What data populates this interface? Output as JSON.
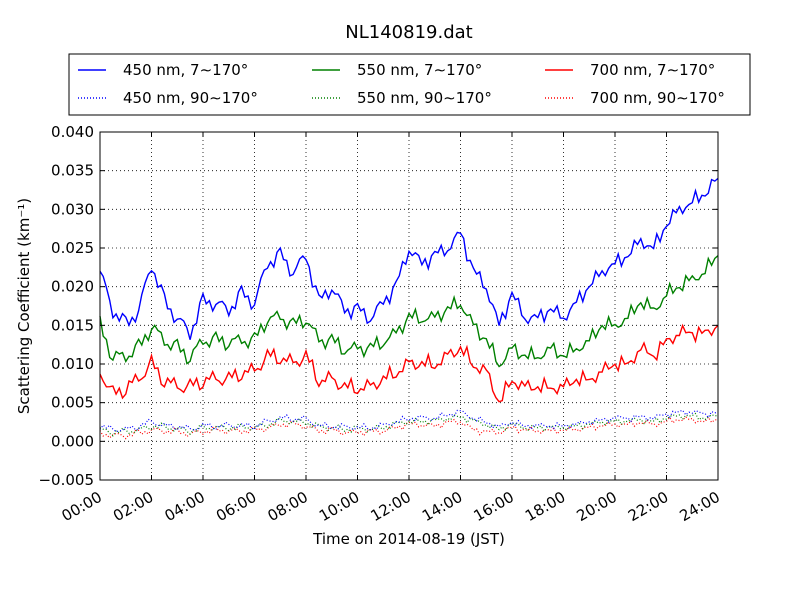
{
  "chart_data": {
    "type": "line",
    "title": "NL140819.dat",
    "xlabel": "Time on 2014-08-19 (JST)",
    "ylabel": "Scattering Coefficient (km⁻¹)",
    "ylim": [
      -0.005,
      0.04
    ],
    "xlim": [
      "00:00",
      "24:00"
    ],
    "grid": true,
    "legend_position": "top",
    "x_tick_labels": [
      "00:00",
      "02:00",
      "04:00",
      "06:00",
      "08:00",
      "10:00",
      "12:00",
      "14:00",
      "16:00",
      "18:00",
      "20:00",
      "22:00",
      "24:00"
    ],
    "y_tick_labels": [
      "−0.005",
      "0.000",
      "0.005",
      "0.010",
      "0.015",
      "0.020",
      "0.025",
      "0.030",
      "0.035",
      "0.040"
    ],
    "x_hours": [
      0,
      0.5,
      1,
      1.5,
      2,
      2.5,
      3,
      3.5,
      4,
      4.5,
      5,
      5.5,
      6,
      6.5,
      7,
      7.5,
      8,
      8.5,
      9,
      9.5,
      10,
      10.5,
      11,
      11.5,
      12,
      12.5,
      13,
      13.5,
      14,
      14.5,
      15,
      15.5,
      16,
      16.5,
      17,
      17.5,
      18,
      18.5,
      19,
      19.5,
      20,
      20.5,
      21,
      21.5,
      22,
      22.5,
      23,
      23.5,
      24
    ],
    "series": [
      {
        "name": "450 nm, 7∼170°",
        "color": "#0000ff",
        "style": "solid",
        "values": [
          0.022,
          0.017,
          0.015,
          0.017,
          0.023,
          0.018,
          0.016,
          0.014,
          0.018,
          0.018,
          0.017,
          0.019,
          0.018,
          0.023,
          0.024,
          0.022,
          0.024,
          0.018,
          0.02,
          0.017,
          0.017,
          0.016,
          0.018,
          0.02,
          0.025,
          0.023,
          0.024,
          0.025,
          0.027,
          0.022,
          0.02,
          0.015,
          0.019,
          0.016,
          0.016,
          0.017,
          0.016,
          0.018,
          0.02,
          0.022,
          0.023,
          0.024,
          0.026,
          0.025,
          0.028,
          0.03,
          0.031,
          0.032,
          0.034
        ]
      },
      {
        "name": "550 nm, 7∼170°",
        "color": "#008000",
        "style": "solid",
        "values": [
          0.015,
          0.011,
          0.011,
          0.012,
          0.015,
          0.013,
          0.012,
          0.011,
          0.013,
          0.013,
          0.013,
          0.013,
          0.013,
          0.016,
          0.016,
          0.015,
          0.016,
          0.013,
          0.013,
          0.012,
          0.012,
          0.012,
          0.013,
          0.014,
          0.016,
          0.016,
          0.016,
          0.017,
          0.018,
          0.015,
          0.013,
          0.01,
          0.012,
          0.011,
          0.011,
          0.012,
          0.011,
          0.012,
          0.013,
          0.015,
          0.015,
          0.016,
          0.018,
          0.017,
          0.019,
          0.02,
          0.021,
          0.022,
          0.024
        ]
      },
      {
        "name": "700 nm, 7∼170°",
        "color": "#ff0000",
        "style": "solid",
        "values": [
          0.009,
          0.006,
          0.007,
          0.008,
          0.01,
          0.008,
          0.007,
          0.007,
          0.008,
          0.008,
          0.008,
          0.009,
          0.009,
          0.011,
          0.011,
          0.01,
          0.011,
          0.008,
          0.008,
          0.007,
          0.007,
          0.007,
          0.008,
          0.009,
          0.01,
          0.01,
          0.01,
          0.011,
          0.012,
          0.01,
          0.009,
          0.005,
          0.008,
          0.007,
          0.007,
          0.007,
          0.007,
          0.008,
          0.008,
          0.009,
          0.01,
          0.01,
          0.012,
          0.011,
          0.013,
          0.014,
          0.014,
          0.014,
          0.015
        ]
      },
      {
        "name": "450 nm, 90∼170°",
        "color": "#0000ff",
        "style": "dotted",
        "values": [
          0.002,
          0.0015,
          0.0015,
          0.002,
          0.0025,
          0.002,
          0.002,
          0.0015,
          0.002,
          0.002,
          0.002,
          0.002,
          0.002,
          0.0025,
          0.003,
          0.003,
          0.0028,
          0.002,
          0.002,
          0.0018,
          0.0018,
          0.0018,
          0.002,
          0.0025,
          0.003,
          0.003,
          0.003,
          0.0035,
          0.0038,
          0.003,
          0.0025,
          0.0018,
          0.0025,
          0.002,
          0.002,
          0.002,
          0.002,
          0.0022,
          0.0025,
          0.0028,
          0.003,
          0.003,
          0.0032,
          0.003,
          0.0035,
          0.0038,
          0.0038,
          0.0035,
          0.0038
        ]
      },
      {
        "name": "550 nm, 90∼170°",
        "color": "#008000",
        "style": "dotted",
        "values": [
          0.0015,
          0.0012,
          0.0012,
          0.0015,
          0.002,
          0.0018,
          0.0016,
          0.0014,
          0.0017,
          0.0018,
          0.0018,
          0.0018,
          0.0018,
          0.0022,
          0.0026,
          0.0026,
          0.0025,
          0.0018,
          0.0018,
          0.0016,
          0.0016,
          0.0016,
          0.0018,
          0.0022,
          0.0026,
          0.0026,
          0.0026,
          0.003,
          0.0032,
          0.0026,
          0.0022,
          0.0016,
          0.0022,
          0.0018,
          0.0018,
          0.0018,
          0.0018,
          0.002,
          0.0022,
          0.0025,
          0.0026,
          0.0026,
          0.0028,
          0.0026,
          0.003,
          0.0033,
          0.0033,
          0.003,
          0.0033
        ]
      },
      {
        "name": "700 nm, 90∼170°",
        "color": "#ff0000",
        "style": "dotted",
        "values": [
          0.001,
          0.0008,
          0.0008,
          0.001,
          0.0015,
          0.0014,
          0.0012,
          0.001,
          0.0013,
          0.0014,
          0.0014,
          0.0014,
          0.0014,
          0.0018,
          0.0022,
          0.0022,
          0.002,
          0.0014,
          0.0014,
          0.0012,
          0.0012,
          0.0012,
          0.0014,
          0.0018,
          0.0022,
          0.0022,
          0.002,
          0.0024,
          0.0026,
          0.0015,
          0.0012,
          0.0012,
          0.0018,
          0.0014,
          0.0014,
          0.0014,
          0.0014,
          0.0016,
          0.0018,
          0.002,
          0.0022,
          0.0022,
          0.0024,
          0.0022,
          0.0026,
          0.0028,
          0.0028,
          0.0026,
          0.0028
        ]
      }
    ]
  }
}
